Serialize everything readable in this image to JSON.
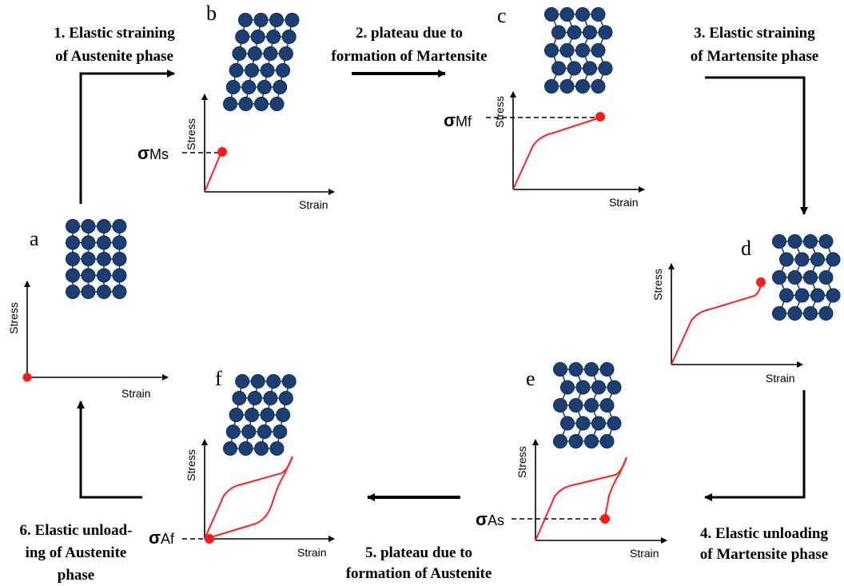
{
  "colors": {
    "atom": "#1b3f74",
    "atom_stroke": "#0f2b55",
    "bond": "#2a3a55",
    "curve": "#ff2020",
    "marker": "#ff1a1a",
    "arrow": "#000000"
  },
  "steps": {
    "s1": {
      "line1": "1. Elastic straining",
      "line2": "of Austenite phase"
    },
    "s2": {
      "line1": "2. plateau due to",
      "line2": "formation of Martensite"
    },
    "s3": {
      "line1": "3. Elastic straining",
      "line2": "of Martensite phase"
    },
    "s4": {
      "line1": "4. Elastic unloading",
      "line2": "of Martensite phase"
    },
    "s5": {
      "line1": "5. plateau due to",
      "line2": "formation of Austenite"
    },
    "s6": {
      "line1": "6. Elastic unload-",
      "line2": "ing of Austenite",
      "line3": "phase"
    }
  },
  "panels": {
    "a": {
      "letter": "a",
      "stress_label": "Stress",
      "strain_label": "Strain",
      "lattice_shear": 0
    },
    "b": {
      "letter": "b",
      "stress_label": "Stress",
      "strain_label": "Strain",
      "sigma": "σ",
      "sigma_sub": "Ms",
      "lattice_shear": 0.35
    },
    "c": {
      "letter": "c",
      "stress_label": "Stress",
      "strain_label": "Strain",
      "sigma": "σ",
      "sigma_sub": "Mf",
      "lattice_shear": "zigzag"
    },
    "d": {
      "letter": "d",
      "stress_label": "Stress",
      "strain_label": "Strain",
      "lattice_shear": "zigzag"
    },
    "e": {
      "letter": "e",
      "stress_label": "Stress",
      "strain_label": "Strain",
      "sigma": "σ",
      "sigma_sub": "As",
      "lattice_shear": "zigzag"
    },
    "f": {
      "letter": "f",
      "stress_label": "Stress",
      "strain_label": "Strain",
      "sigma": "σ",
      "sigma_sub": "Af",
      "lattice_shear": 0.35
    }
  }
}
